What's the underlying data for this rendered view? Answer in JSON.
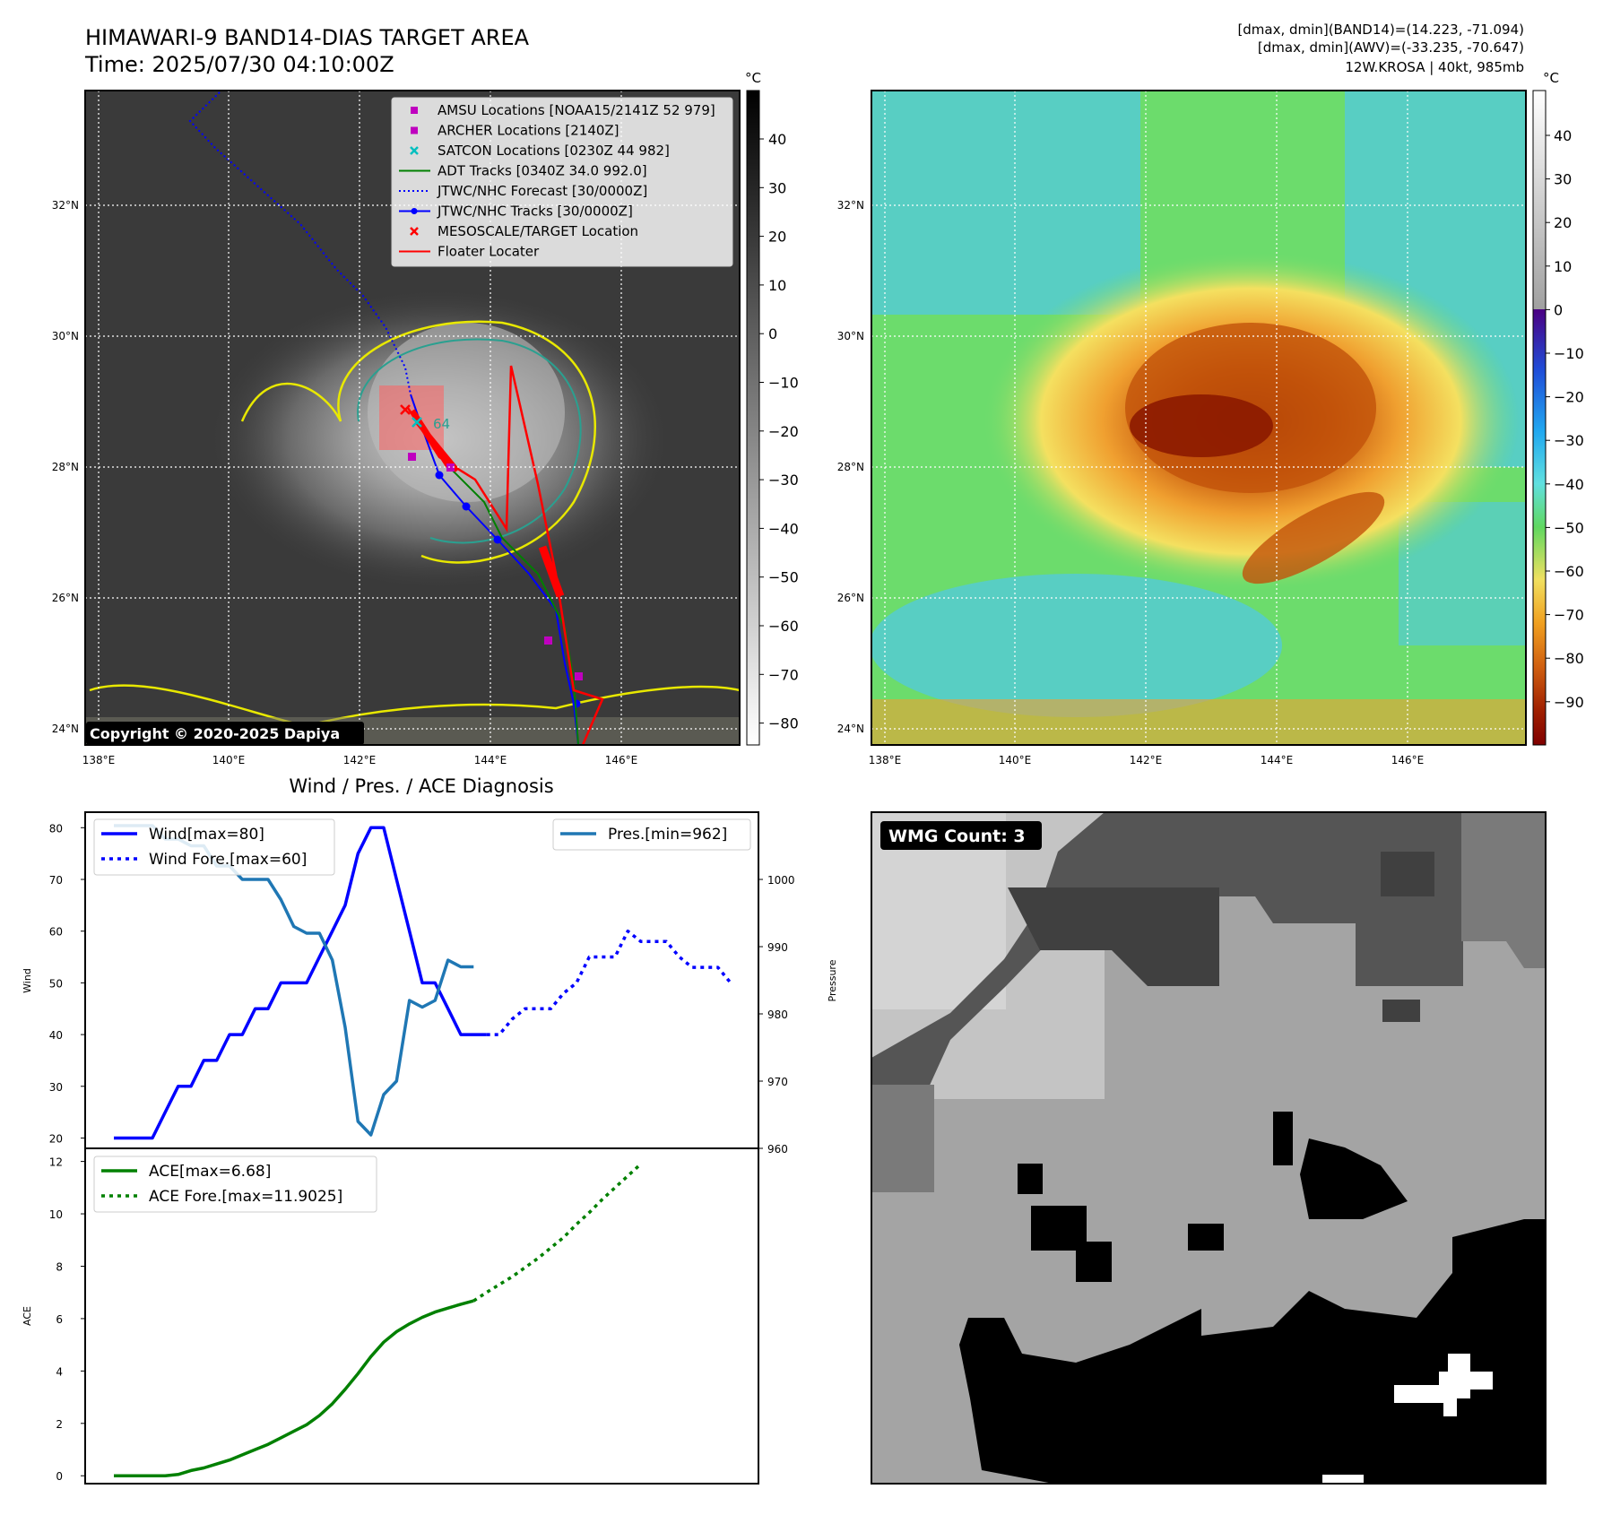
{
  "header": {
    "title_line1": "HIMAWARI-9 BAND14-DIAS TARGET AREA",
    "title_line2": "Time: 2025/07/30 04:10:00Z",
    "info_line1": "[dmax, dmin](BAND14)=(14.223, -71.094)",
    "info_line2": "[dmax, dmin](AWV)=(-33.235, -70.647)",
    "info_line3": "12W.KROSA | 40kt, 985mb"
  },
  "map_axes": {
    "lon_labels": [
      "138°E",
      "140°E",
      "142°E",
      "144°E",
      "146°E"
    ],
    "lat_labels": [
      "32°N",
      "30°N",
      "28°N",
      "26°N",
      "24°N"
    ]
  },
  "ir_panel": {
    "legend": [
      {
        "label": "AMSU Locations [NOAA15/2141Z 52 979]",
        "marker": "square",
        "color": "#bf00bf"
      },
      {
        "label": "ARCHER Locations [2140Z]",
        "marker": "square",
        "color": "#bf00bf"
      },
      {
        "label": "SATCON Locations [0230Z 44 982]",
        "marker": "x",
        "color": "#00bfbf"
      },
      {
        "label": "ADT Tracks [0340Z 34.0 992.0]",
        "marker": "line",
        "color": "#008000"
      },
      {
        "label": "JTWC/NHC Forecast [30/0000Z]",
        "marker": "dotted",
        "color": "#0000ff"
      },
      {
        "label": "JTWC/NHC Tracks [30/0000Z]",
        "marker": "line-dot",
        "color": "#0000ff"
      },
      {
        "label": "MESOSCALE/TARGET Location",
        "marker": "x",
        "color": "#ff0000"
      },
      {
        "label": "Floater Locater",
        "marker": "line",
        "color": "#ff0000"
      }
    ],
    "copyright": "Copyright © 2020-2025 Dapiya",
    "colorbar_unit": "°C",
    "colorbar_ticks": [
      "40",
      "30",
      "20",
      "10",
      "0",
      "−10",
      "−20",
      "−30",
      "−40",
      "−50",
      "−60",
      "−70",
      "−80"
    ],
    "ring_label": "64"
  },
  "wv_panel": {
    "colorbar_unit": "°C",
    "colorbar_ticks": [
      "40",
      "30",
      "20",
      "10",
      "0",
      "−10",
      "−20",
      "−30",
      "−40",
      "−50",
      "−60",
      "−70",
      "−80",
      "−90"
    ]
  },
  "diag": {
    "title": "Wind / Pres. / ACE Diagnosis",
    "wind_ylabel": "Wind",
    "pres_ylabel": "Pressure",
    "ace_ylabel": "ACE",
    "wind_ticks": [
      "80",
      "70",
      "60",
      "50",
      "40",
      "30",
      "20"
    ],
    "pres_ticks": [
      "1000",
      "990",
      "980",
      "970",
      "960"
    ],
    "ace_ticks": [
      "12",
      "10",
      "8",
      "6",
      "4",
      "2",
      "0"
    ],
    "legend_wind": "Wind[max=80]",
    "legend_wind_fore": "Wind Fore.[max=60]",
    "legend_pres": "Pres.[min=962]",
    "legend_ace": "ACE[max=6.68]",
    "legend_ace_fore": "ACE Fore.[max=11.9025]"
  },
  "wmg": {
    "label": "WMG Count: 3"
  },
  "chart_data": {
    "type": "line",
    "title": "Wind / Pres. / ACE Diagnosis",
    "xlabel": "",
    "series": [
      {
        "name": "Wind[max=80]",
        "axis": "wind",
        "style": "solid",
        "color": "#0000ff",
        "values": [
          20,
          20,
          20,
          20,
          25,
          30,
          30,
          35,
          35,
          40,
          40,
          45,
          45,
          50,
          50,
          50,
          55,
          60,
          65,
          75,
          80,
          80,
          70,
          60,
          50,
          50,
          45,
          40,
          40,
          40
        ]
      },
      {
        "name": "Wind Fore.[max=60]",
        "axis": "wind",
        "style": "dotted",
        "color": "#0000ff",
        "x_start": 29,
        "values": [
          40,
          40,
          43,
          45,
          45,
          45,
          48,
          50,
          55,
          55,
          55,
          60,
          58,
          58,
          58,
          55,
          53,
          53,
          53,
          50
        ]
      },
      {
        "name": "Pres.[min=962]",
        "axis": "pressure",
        "style": "solid",
        "color": "#1f77b4",
        "values": [
          1008,
          1008,
          1008,
          1008,
          1006,
          1006,
          1005,
          1005,
          1002,
          1002,
          1000,
          1000,
          1000,
          997,
          993,
          992,
          992,
          988,
          978,
          964,
          962,
          968,
          970,
          982,
          981,
          982,
          988,
          987,
          987
        ]
      },
      {
        "name": "ACE[max=6.68]",
        "axis": "ace",
        "style": "solid",
        "color": "#008000",
        "values": [
          0,
          0,
          0,
          0,
          0,
          0.05,
          0.2,
          0.3,
          0.45,
          0.6,
          0.8,
          1.0,
          1.2,
          1.45,
          1.7,
          1.95,
          2.3,
          2.75,
          3.3,
          3.9,
          4.55,
          5.1,
          5.5,
          5.8,
          6.05,
          6.25,
          6.4,
          6.55,
          6.68
        ]
      },
      {
        "name": "ACE Fore.[max=11.9025]",
        "axis": "ace",
        "style": "dotted",
        "color": "#008000",
        "x_start": 28,
        "values": [
          6.68,
          7.0,
          7.3,
          7.6,
          7.95,
          8.3,
          8.7,
          9.1,
          9.6,
          10.05,
          10.55,
          11.0,
          11.45,
          11.9025
        ]
      }
    ],
    "axes": {
      "wind": {
        "ylim": [
          18,
          83
        ]
      },
      "pressure": {
        "ylim": [
          960,
          1010
        ]
      },
      "ace": {
        "ylim": [
          -0.3,
          12.5
        ]
      }
    },
    "x_range": [
      0,
      48
    ],
    "grid": false,
    "legend": "upper-left"
  }
}
